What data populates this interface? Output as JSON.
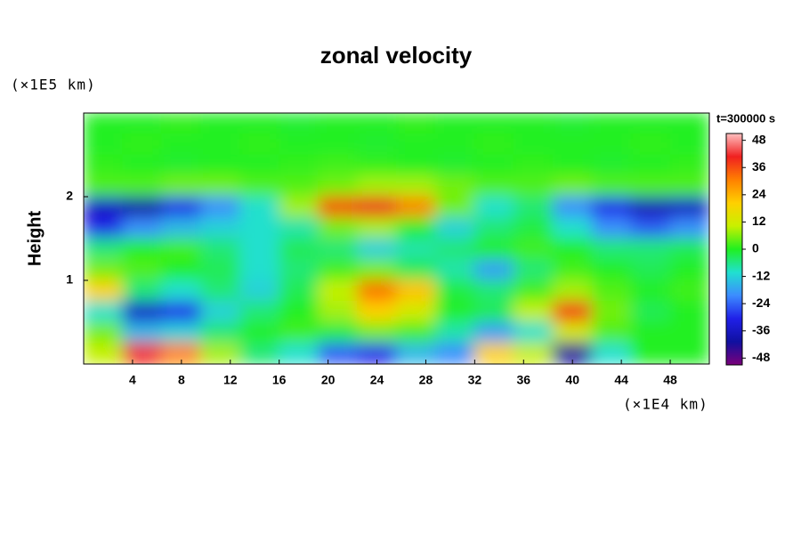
{
  "chart_data": {
    "type": "heatmap",
    "title": "zonal velocity",
    "ylabel": "Height",
    "yunit": "(×1E5 km)",
    "xunit": "(×1E4 km)",
    "xlim": [
      0,
      51.2
    ],
    "ylim": [
      0,
      3
    ],
    "xticks": [
      4,
      8,
      12,
      16,
      20,
      24,
      28,
      32,
      36,
      40,
      44,
      48
    ],
    "yticks": [
      1,
      2
    ],
    "x": [
      1.6,
      4.8,
      8,
      11.2,
      14.4,
      17.6,
      20.8,
      24,
      27.2,
      30.4,
      33.6,
      36.8,
      40,
      43.2,
      46.4,
      49.6
    ],
    "y": [
      2.875,
      2.625,
      2.375,
      2.125,
      1.875,
      1.625,
      1.375,
      1.125,
      0.875,
      0.625,
      0.375,
      0.125
    ],
    "z": [
      [
        0,
        0,
        1,
        0,
        0,
        -1,
        0,
        0,
        1,
        0,
        0,
        0,
        -1,
        0,
        0,
        0
      ],
      [
        0,
        1,
        0,
        0,
        1,
        0,
        0,
        -1,
        0,
        0,
        1,
        0,
        0,
        0,
        1,
        0
      ],
      [
        1,
        0,
        -1,
        0,
        0,
        1,
        2,
        1,
        0,
        -1,
        0,
        1,
        0,
        -1,
        0,
        1
      ],
      [
        3,
        3,
        5,
        5,
        3,
        3,
        5,
        8,
        8,
        5,
        3,
        3,
        5,
        3,
        3,
        3
      ],
      [
        -36,
        -40,
        -30,
        -20,
        -10,
        8,
        36,
        40,
        30,
        5,
        -10,
        -5,
        -20,
        -30,
        -38,
        -36
      ],
      [
        -30,
        -20,
        -15,
        -12,
        -10,
        -8,
        5,
        8,
        0,
        -12,
        -5,
        -2,
        -10,
        -20,
        -25,
        -20
      ],
      [
        -5,
        0,
        2,
        -5,
        -10,
        -3,
        -5,
        -12,
        -8,
        -5,
        0,
        2,
        0,
        -5,
        -5,
        -3
      ],
      [
        5,
        3,
        0,
        -3,
        -10,
        -5,
        2,
        5,
        -3,
        -8,
        -18,
        -5,
        2,
        0,
        -3,
        0
      ],
      [
        20,
        -5,
        -10,
        -5,
        -12,
        -3,
        10,
        32,
        22,
        -2,
        -5,
        2,
        8,
        3,
        0,
        2
      ],
      [
        -10,
        -35,
        -30,
        -12,
        -5,
        0,
        8,
        20,
        12,
        0,
        -3,
        10,
        38,
        5,
        -3,
        0
      ],
      [
        5,
        -15,
        -12,
        -5,
        0,
        2,
        -2,
        5,
        2,
        -8,
        -18,
        -10,
        12,
        3,
        0,
        0
      ],
      [
        10,
        40,
        30,
        8,
        -5,
        -10,
        -25,
        -30,
        -15,
        -20,
        20,
        10,
        -42,
        -10,
        0,
        0
      ]
    ],
    "colorbar": {
      "label": "t=300000 s",
      "lim": [
        -51,
        51
      ],
      "ticks": [
        -48,
        -36,
        -24,
        -12,
        0,
        12,
        24,
        36,
        48
      ],
      "colors": [
        "#7a007a",
        "#1010a0",
        "#2020e8",
        "#3c8cff",
        "#20e0d0",
        "#20f020",
        "#c8f000",
        "#ffd000",
        "#ff8000",
        "#f02020",
        "#ffc0c0"
      ]
    }
  }
}
